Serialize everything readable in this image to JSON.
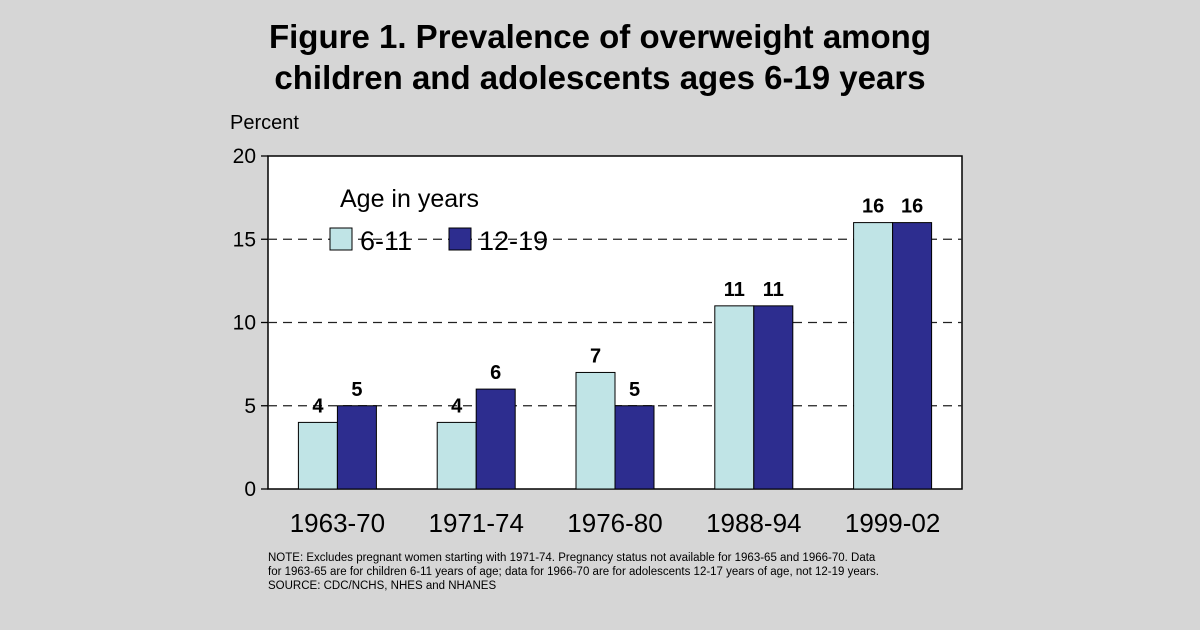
{
  "title_line1": "Figure 1. Prevalence of overweight among",
  "title_line2": "children and adolescents ages 6-19 years",
  "notes": [
    "NOTE:  Excludes pregnant women starting with 1971-74.  Pregnancy status not available for 1963-65 and 1966-70.  Data",
    "for 1963-65 are for children 6-11 years of age; data for 1966-70 are for adolescents 12-17 years of age, not 12-19 years.",
    "SOURCE: CDC/NCHS, NHES and NHANES"
  ],
  "colors": {
    "background": "#d6d6d6",
    "plot_background": "#ffffff",
    "series_6_11": "#c0e4e6",
    "series_12_19": "#2d2d8f"
  },
  "chart_data": {
    "type": "bar",
    "ylabel": "Percent",
    "ylim": [
      0,
      20
    ],
    "yticks": [
      0,
      5,
      10,
      15,
      20
    ],
    "grid": "dashed horizontal",
    "legend_title": "Age in years",
    "legend_position": "top-left",
    "categories": [
      "1963-70",
      "1971-74",
      "1976-80",
      "1988-94",
      "1999-02"
    ],
    "series": [
      {
        "name": "6-11",
        "values": [
          4,
          4,
          7,
          11,
          16
        ]
      },
      {
        "name": "12-19",
        "values": [
          5,
          6,
          5,
          11,
          16
        ]
      }
    ]
  }
}
